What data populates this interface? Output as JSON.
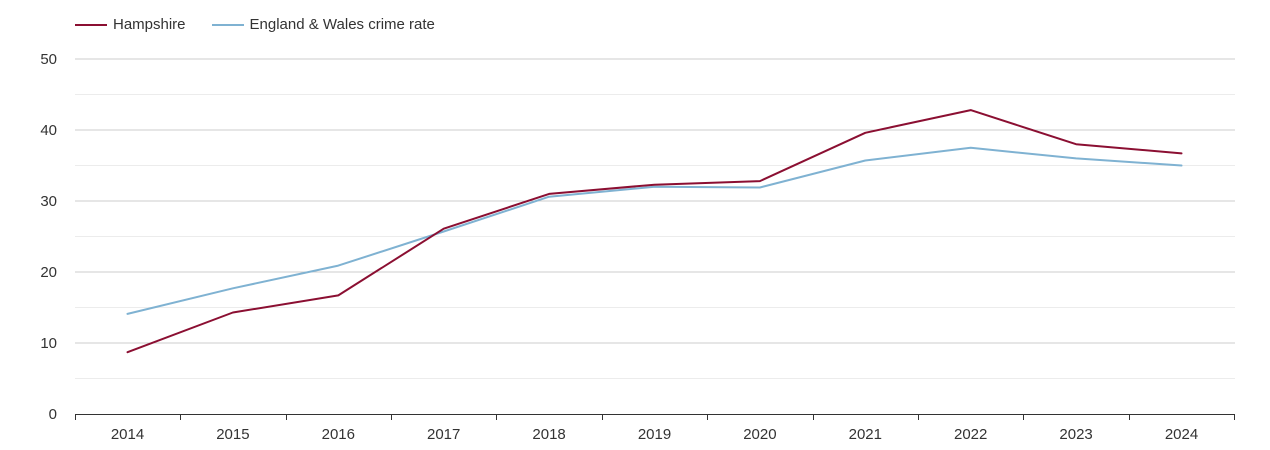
{
  "chart_data": {
    "type": "line",
    "title": "",
    "xlabel": "",
    "ylabel": "",
    "categories": [
      "2014",
      "2015",
      "2016",
      "2017",
      "2018",
      "2019",
      "2020",
      "2021",
      "2022",
      "2023",
      "2024"
    ],
    "ylim": [
      0,
      50
    ],
    "yticks": [
      "0",
      "10",
      "20",
      "30",
      "40",
      "50"
    ],
    "grid": true,
    "legend_position": "top-left",
    "series": [
      {
        "name": "Hampshire",
        "color": "#8b0f32",
        "values": [
          8.7,
          14.3,
          16.7,
          26.1,
          31.0,
          32.3,
          32.8,
          39.6,
          42.8,
          38.0,
          36.7
        ]
      },
      {
        "name": "England & Wales crime rate",
        "color": "#7fb2d2",
        "values": [
          14.1,
          17.7,
          20.9,
          25.7,
          30.6,
          32.0,
          31.9,
          35.7,
          37.5,
          36.0,
          35.0
        ]
      }
    ]
  }
}
